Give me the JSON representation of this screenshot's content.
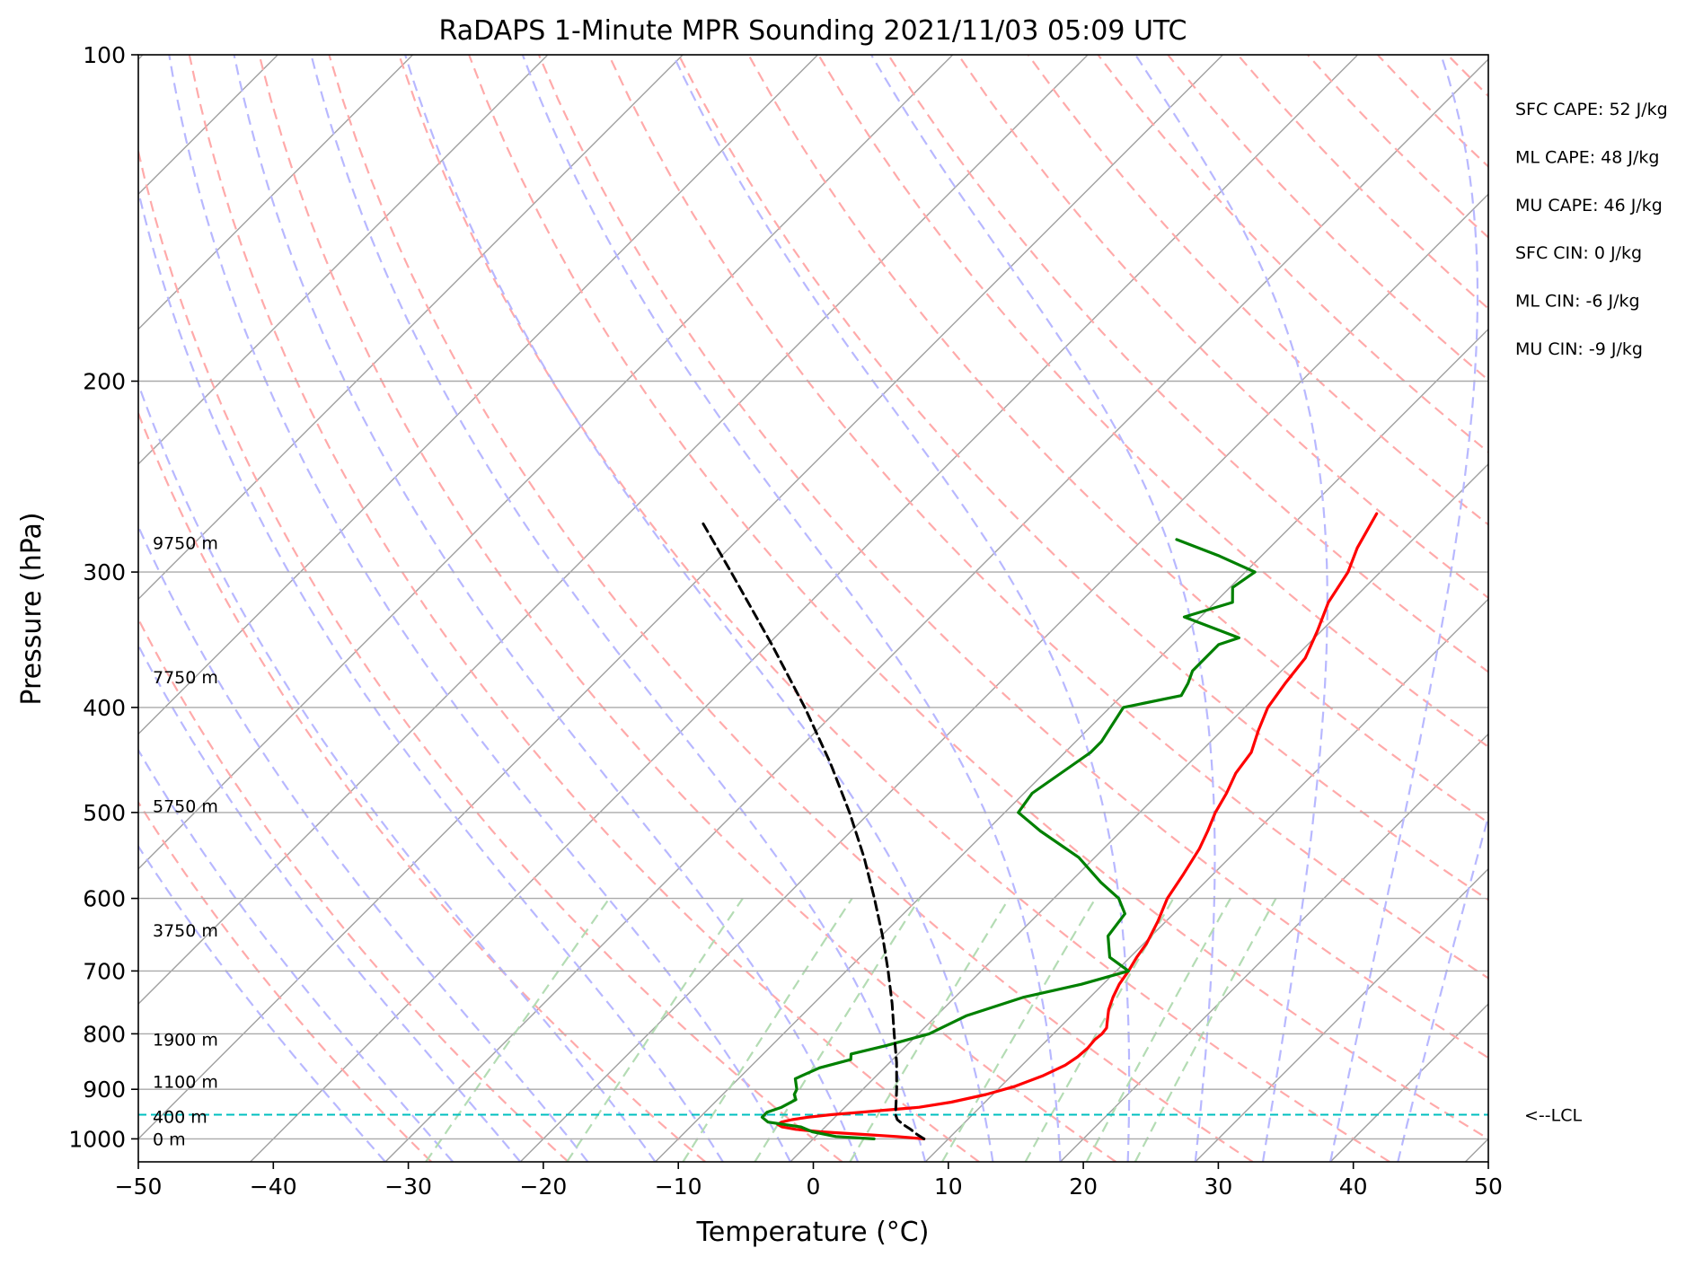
{
  "chart_data": {
    "type": "line",
    "title": "RaDAPS 1-Minute MPR Sounding 2021/11/03 05:09 UTC",
    "xlabel": "Temperature (°C)",
    "ylabel": "Pressure (hPa)",
    "xlim": [
      -50,
      50
    ],
    "ylim": [
      1050,
      100
    ],
    "y_scale": "log",
    "skew": "skew-T log-p",
    "x_ticks": [
      -50,
      -40,
      -30,
      -20,
      -10,
      0,
      10,
      20,
      30,
      40,
      50
    ],
    "x_tick_labels": [
      "−50",
      "−40",
      "−30",
      "−20",
      "−10",
      "0",
      "10",
      "20",
      "30",
      "40",
      "50"
    ],
    "y_ticks": [
      1000,
      900,
      800,
      700,
      600,
      500,
      400,
      300,
      200,
      100
    ],
    "y_tick_labels": [
      "1000",
      "900",
      "800",
      "700",
      "600",
      "500",
      "400",
      "300",
      "200",
      "100"
    ],
    "grid": true,
    "background_lines": {
      "isotherms": "gray solid",
      "dry_adiabats": "red dashed",
      "moist_adiabats": "blue dashed",
      "mixing_ratio": "green dashed"
    },
    "series": [
      {
        "role": "temperature",
        "color": "#ff0000",
        "points": [
          [
            1000,
            8.2
          ],
          [
            995,
            6.0
          ],
          [
            990,
            3.0
          ],
          [
            985,
            0.0
          ],
          [
            980,
            -2.0
          ],
          [
            975,
            -3.2
          ],
          [
            970,
            -3.7
          ],
          [
            965,
            -3.6
          ],
          [
            960,
            -3.0
          ],
          [
            955,
            -2.0
          ],
          [
            950,
            -0.5
          ],
          [
            945,
            1.5
          ],
          [
            940,
            3.5
          ],
          [
            935,
            5.5
          ],
          [
            925,
            7.5
          ],
          [
            910,
            9.5
          ],
          [
            895,
            11.0
          ],
          [
            875,
            12.3
          ],
          [
            855,
            13.2
          ],
          [
            840,
            13.5
          ],
          [
            825,
            13.6
          ],
          [
            810,
            13.5
          ],
          [
            800,
            13.6
          ],
          [
            790,
            13.5
          ],
          [
            780,
            13.1
          ],
          [
            760,
            12.3
          ],
          [
            740,
            11.7
          ],
          [
            720,
            11.2
          ],
          [
            700,
            10.9
          ],
          [
            680,
            10.5
          ],
          [
            660,
            10.2
          ],
          [
            630,
            9.4
          ],
          [
            600,
            8.4
          ],
          [
            570,
            7.8
          ],
          [
            540,
            7.1
          ],
          [
            520,
            6.4
          ],
          [
            500,
            5.6
          ],
          [
            480,
            5.0
          ],
          [
            460,
            4.2
          ],
          [
            440,
            3.8
          ],
          [
            420,
            2.7
          ],
          [
            400,
            1.7
          ],
          [
            380,
            1.2
          ],
          [
            360,
            0.8
          ],
          [
            340,
            -0.3
          ],
          [
            320,
            -1.6
          ],
          [
            300,
            -2.4
          ],
          [
            285,
            -3.5
          ],
          [
            265,
            -4.6
          ]
        ]
      },
      {
        "role": "dewpoint",
        "color": "#008000",
        "points": [
          [
            1000,
            4.5
          ],
          [
            995,
            1.5
          ],
          [
            985,
            -0.6
          ],
          [
            975,
            -1.8
          ],
          [
            965,
            -4.6
          ],
          [
            955,
            -5.4
          ],
          [
            945,
            -5.4
          ],
          [
            935,
            -4.7
          ],
          [
            920,
            -4.2
          ],
          [
            910,
            -4.7
          ],
          [
            900,
            -4.9
          ],
          [
            880,
            -5.8
          ],
          [
            860,
            -4.8
          ],
          [
            845,
            -3.1
          ],
          [
            835,
            -3.5
          ],
          [
            820,
            -1.5
          ],
          [
            800,
            0.8
          ],
          [
            770,
            2.2
          ],
          [
            740,
            5.1
          ],
          [
            720,
            8.4
          ],
          [
            700,
            10.9
          ],
          [
            680,
            8.5
          ],
          [
            650,
            6.8
          ],
          [
            620,
            6.4
          ],
          [
            600,
            4.8
          ],
          [
            580,
            2.3
          ],
          [
            550,
            -1.2
          ],
          [
            520,
            -6.0
          ],
          [
            500,
            -9.0
          ],
          [
            480,
            -9.4
          ],
          [
            455,
            -8.6
          ],
          [
            440,
            -8.1
          ],
          [
            430,
            -8.1
          ],
          [
            400,
            -9.0
          ],
          [
            390,
            -5.6
          ],
          [
            380,
            -6.0
          ],
          [
            370,
            -6.6
          ],
          [
            350,
            -6.6
          ],
          [
            345,
            -5.6
          ],
          [
            330,
            -11.2
          ],
          [
            320,
            -8.7
          ],
          [
            310,
            -9.8
          ],
          [
            300,
            -9.3
          ],
          [
            290,
            -13.1
          ],
          [
            280,
            -17.5
          ]
        ]
      },
      {
        "role": "parcel",
        "color": "#000000",
        "style": "dashed",
        "points": [
          [
            1000,
            8.2
          ],
          [
            990,
            7.3
          ],
          [
            980,
            6.5
          ],
          [
            970,
            5.6
          ],
          [
            960,
            4.8
          ],
          [
            950,
            4.3
          ],
          [
            900,
            2.5
          ],
          [
            850,
            0.5
          ],
          [
            800,
            -1.8
          ],
          [
            750,
            -4.2
          ],
          [
            700,
            -6.9
          ],
          [
            650,
            -9.9
          ],
          [
            600,
            -13.3
          ],
          [
            550,
            -17.1
          ],
          [
            500,
            -21.5
          ],
          [
            450,
            -26.6
          ],
          [
            400,
            -32.6
          ],
          [
            350,
            -39.7
          ],
          [
            300,
            -48.1
          ],
          [
            270,
            -53.9
          ]
        ]
      }
    ],
    "lcl": {
      "pressure": 950,
      "label": "<--LCL",
      "color": "#00bfbf"
    },
    "height_labels": [
      {
        "label": "0 m",
        "pressure": 1000
      },
      {
        "label": "400 m",
        "pressure": 954
      },
      {
        "label": "1100 m",
        "pressure": 885
      },
      {
        "label": "1900 m",
        "pressure": 809
      },
      {
        "label": "3750 m",
        "pressure": 642
      },
      {
        "label": "5750 m",
        "pressure": 493
      },
      {
        "label": "7750 m",
        "pressure": 375
      },
      {
        "label": "9750 m",
        "pressure": 282
      }
    ],
    "annotations": [
      "SFC CAPE: 52 J/kg",
      "ML CAPE: 48 J/kg",
      "MU CAPE: 46 J/kg",
      "SFC CIN: 0 J/kg",
      "ML CIN: -6 J/kg",
      "MU CIN: -9 J/kg"
    ]
  }
}
